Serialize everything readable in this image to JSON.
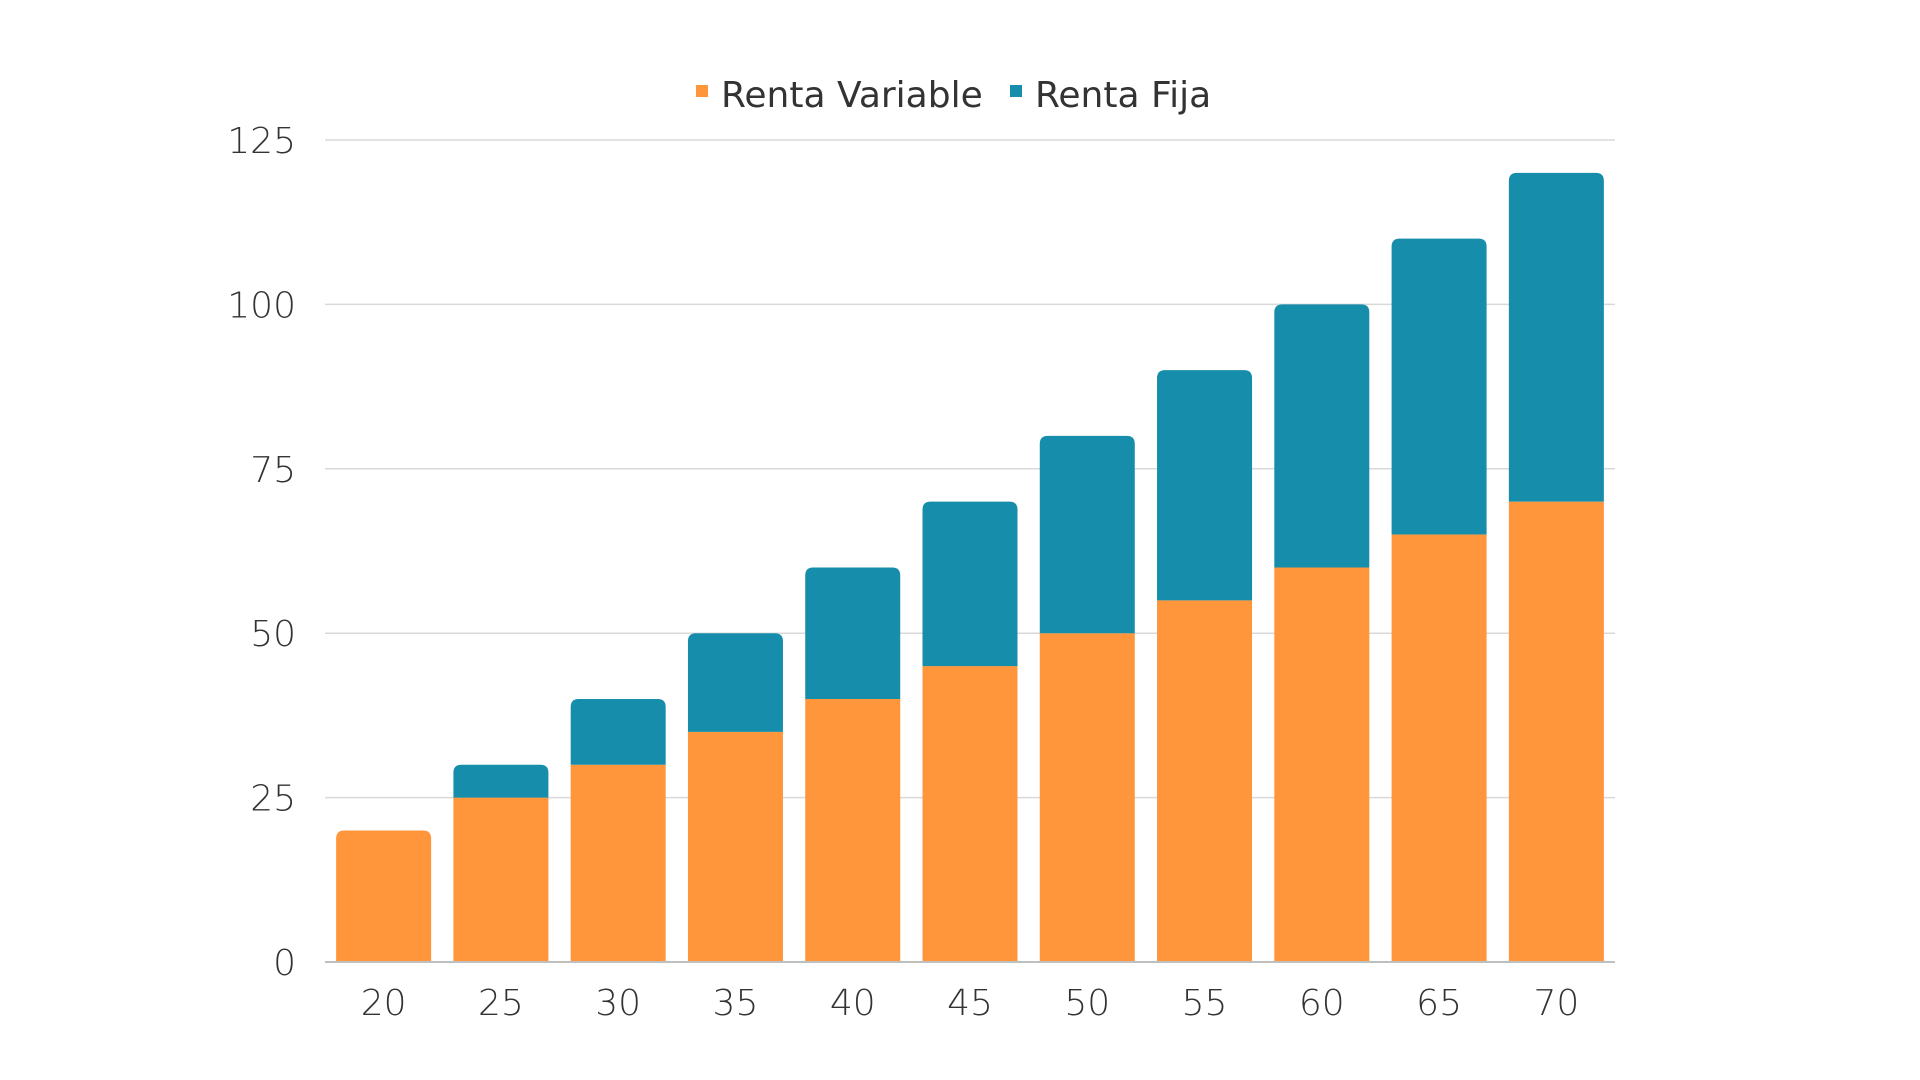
{
  "chart_data": {
    "type": "bar",
    "stacked": true,
    "categories": [
      "20",
      "25",
      "30",
      "35",
      "40",
      "45",
      "50",
      "55",
      "60",
      "65",
      "70"
    ],
    "series": [
      {
        "name": "Renta Variable",
        "color": "#ff963c",
        "values": [
          20,
          25,
          30,
          35,
          40,
          45,
          50,
          55,
          60,
          65,
          70
        ]
      },
      {
        "name": "Renta Fija",
        "color": "#168dab",
        "values": [
          0,
          5,
          10,
          15,
          20,
          25,
          30,
          35,
          40,
          45,
          50
        ]
      }
    ],
    "title": "",
    "xlabel": "",
    "ylabel": "",
    "ylim": [
      0,
      125
    ],
    "yticks": [
      0,
      25,
      50,
      75,
      100,
      125
    ],
    "grid": true,
    "legend_position": "top-center"
  }
}
